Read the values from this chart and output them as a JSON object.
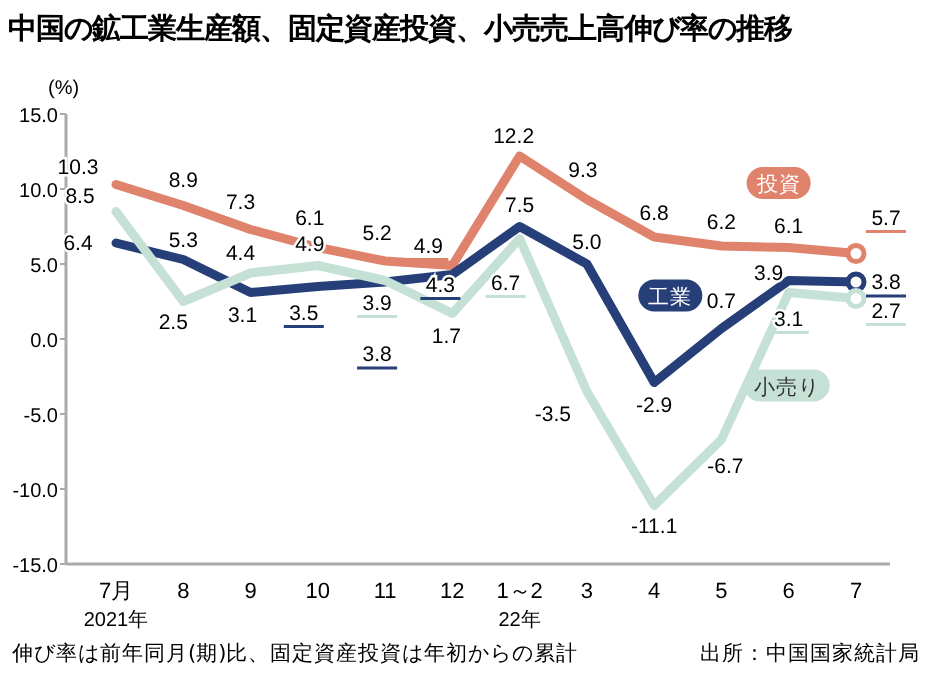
{
  "chart_data": {
    "type": "line",
    "title": "中国の鉱工業生産額、固定資産投資、小売売上高伸び率の推移",
    "ylabel": "(%)",
    "categories": [
      "7月\n2021年",
      "8",
      "9",
      "10",
      "11",
      "12",
      "1～2\n22年",
      "3",
      "4",
      "5",
      "6",
      "7"
    ],
    "series": [
      {
        "name": "投資",
        "color": "#e0836d",
        "values": [
          10.3,
          8.9,
          7.3,
          6.1,
          5.2,
          4.9,
          12.2,
          9.3,
          6.8,
          6.2,
          6.1,
          5.7
        ],
        "value_labels": [
          "10.3",
          "8.9",
          "7.3",
          "6.1",
          "5.2",
          "4.9",
          "12.2",
          "9.3",
          "6.8",
          "6.2",
          "6.1",
          "5.7"
        ]
      },
      {
        "name": "工業",
        "color": "#263f78",
        "values": [
          6.4,
          5.3,
          3.1,
          3.5,
          3.8,
          4.3,
          7.5,
          5.0,
          -2.9,
          0.7,
          3.9,
          3.8
        ],
        "value_labels": [
          "6.4",
          "5.3",
          "3.1",
          "3.5",
          "3.8",
          "4.3",
          "7.5",
          "5.0",
          "-2.9",
          "0.7",
          "3.9",
          "3.8"
        ]
      },
      {
        "name": "小売り",
        "color": "#c5e0d5",
        "values": [
          8.5,
          2.5,
          4.4,
          4.9,
          3.9,
          1.7,
          6.7,
          -3.5,
          -11.1,
          -6.7,
          3.1,
          2.7
        ],
        "value_labels": [
          "8.5",
          "2.5",
          "4.4",
          "4.9",
          "3.9",
          "1.7",
          "6.7",
          "-3.5",
          "-11.1",
          "-6.7",
          "3.1",
          "2.7"
        ]
      }
    ],
    "ylim": [
      -15,
      15
    ],
    "yticks": [
      {
        "value": -15,
        "label": "-15.0"
      },
      {
        "value": -10,
        "label": "-10.0"
      },
      {
        "value": -5,
        "label": "-5.0"
      },
      {
        "value": 0,
        "label": "0.0"
      },
      {
        "value": 5,
        "label": "5.0"
      },
      {
        "value": 10,
        "label": "10.0"
      },
      {
        "value": 15,
        "label": "15.0"
      }
    ],
    "legend": false,
    "grid": false,
    "annotations": [
      "伸び率は前年同月(期)比、固定資産投資は年初からの累計",
      "出所：中国国家統計局"
    ]
  }
}
